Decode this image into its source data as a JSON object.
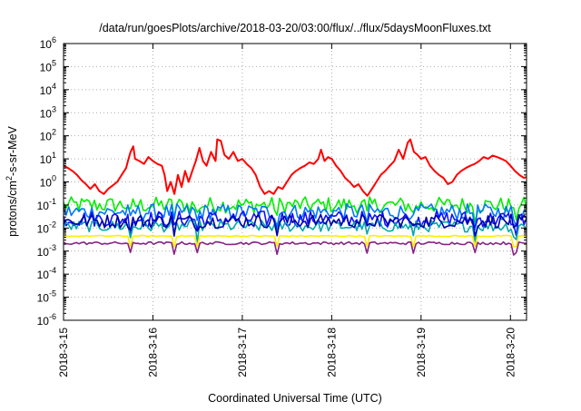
{
  "chart_data": {
    "type": "line",
    "title": "/data/run/goesPlots/archive/2018-03-20/03:00/flux/../flux/5daysMoonFluxes.txt",
    "xlabel": "Coordinated Universal Time (UTC)",
    "ylabel_prefix": "protons/cm",
    "ylabel_sup": "2",
    "ylabel_suffix": "-s-sr-MeV",
    "yscale": "log",
    "ylim": [
      1e-06,
      1000000.0
    ],
    "xlim": [
      0,
      5.18
    ],
    "y_ticks": [
      {
        "value": -6,
        "base": "10",
        "exp": "-6"
      },
      {
        "value": -5,
        "base": "10",
        "exp": "-5"
      },
      {
        "value": -4,
        "base": "10",
        "exp": "-4"
      },
      {
        "value": -3,
        "base": "10",
        "exp": "-3"
      },
      {
        "value": -2,
        "base": "10",
        "exp": "-2"
      },
      {
        "value": -1,
        "base": "10",
        "exp": "-1"
      },
      {
        "value": 0,
        "base": "10",
        "exp": "0"
      },
      {
        "value": 1,
        "base": "10",
        "exp": "1"
      },
      {
        "value": 2,
        "base": "10",
        "exp": "2"
      },
      {
        "value": 3,
        "base": "10",
        "exp": "3"
      },
      {
        "value": 4,
        "base": "10",
        "exp": "4"
      },
      {
        "value": 5,
        "base": "10",
        "exp": "5"
      },
      {
        "value": 6,
        "base": "10",
        "exp": "6"
      }
    ],
    "x_ticks": [
      {
        "value": 0,
        "label": "2018-3-15"
      },
      {
        "value": 1,
        "label": "2018-3-16"
      },
      {
        "value": 2,
        "label": "2018-3-17"
      },
      {
        "value": 3,
        "label": "2018-3-18"
      },
      {
        "value": 4,
        "label": "2018-3-19"
      },
      {
        "value": 5,
        "label": "2018-3-20"
      }
    ],
    "grid": true,
    "series": [
      {
        "color": "#ff0000",
        "values": [
          [
            0.0,
            5.0
          ],
          [
            0.05,
            4.0
          ],
          [
            0.1,
            3.0
          ],
          [
            0.15,
            2.0
          ],
          [
            0.2,
            1.2
          ],
          [
            0.25,
            0.8
          ],
          [
            0.3,
            0.5
          ],
          [
            0.35,
            0.8
          ],
          [
            0.4,
            0.4
          ],
          [
            0.45,
            0.3
          ],
          [
            0.5,
            0.5
          ],
          [
            0.55,
            0.7
          ],
          [
            0.6,
            1.0
          ],
          [
            0.65,
            2.0
          ],
          [
            0.7,
            4.0
          ],
          [
            0.72,
            8.0
          ],
          [
            0.75,
            20.0
          ],
          [
            0.78,
            35.0
          ],
          [
            0.8,
            10.0
          ],
          [
            0.85,
            8.0
          ],
          [
            0.9,
            6.0
          ],
          [
            0.95,
            12.0
          ],
          [
            1.0,
            8.0
          ],
          [
            1.05,
            6.0
          ],
          [
            1.1,
            5.0
          ],
          [
            1.13,
            2.0
          ],
          [
            1.16,
            0.4
          ],
          [
            1.2,
            1.0
          ],
          [
            1.24,
            0.3
          ],
          [
            1.28,
            2.0
          ],
          [
            1.32,
            0.6
          ],
          [
            1.36,
            3.0
          ],
          [
            1.4,
            1.0
          ],
          [
            1.44,
            3.0
          ],
          [
            1.48,
            8.0
          ],
          [
            1.52,
            30.0
          ],
          [
            1.56,
            8.0
          ],
          [
            1.6,
            5.0
          ],
          [
            1.65,
            20.0
          ],
          [
            1.7,
            8.0
          ],
          [
            1.72,
            70.0
          ],
          [
            1.76,
            60.0
          ],
          [
            1.8,
            15.0
          ],
          [
            1.85,
            10.0
          ],
          [
            1.9,
            20.0
          ],
          [
            1.95,
            8.0
          ],
          [
            2.0,
            10.0
          ],
          [
            2.05,
            6.0
          ],
          [
            2.1,
            4.0
          ],
          [
            2.15,
            2.0
          ],
          [
            2.2,
            0.6
          ],
          [
            2.25,
            0.3
          ],
          [
            2.3,
            0.4
          ],
          [
            2.35,
            0.3
          ],
          [
            2.4,
            0.6
          ],
          [
            2.45,
            0.5
          ],
          [
            2.5,
            1.0
          ],
          [
            2.55,
            2.0
          ],
          [
            2.6,
            3.0
          ],
          [
            2.65,
            4.0
          ],
          [
            2.7,
            5.0
          ],
          [
            2.75,
            7.0
          ],
          [
            2.8,
            6.0
          ],
          [
            2.85,
            10.0
          ],
          [
            2.88,
            25.0
          ],
          [
            2.92,
            8.0
          ],
          [
            2.96,
            12.0
          ],
          [
            3.0,
            10.0
          ],
          [
            3.05,
            5.0
          ],
          [
            3.1,
            3.0
          ],
          [
            3.15,
            1.5
          ],
          [
            3.2,
            1.0
          ],
          [
            3.25,
            0.6
          ],
          [
            3.3,
            0.8
          ],
          [
            3.35,
            0.4
          ],
          [
            3.4,
            0.25
          ],
          [
            3.45,
            0.5
          ],
          [
            3.5,
            1.0
          ],
          [
            3.55,
            2.0
          ],
          [
            3.6,
            3.0
          ],
          [
            3.65,
            5.0
          ],
          [
            3.7,
            8.0
          ],
          [
            3.75,
            25.0
          ],
          [
            3.8,
            10.0
          ],
          [
            3.85,
            50.0
          ],
          [
            3.88,
            70.0
          ],
          [
            3.92,
            20.0
          ],
          [
            3.96,
            15.0
          ],
          [
            4.0,
            10.0
          ],
          [
            4.05,
            12.0
          ],
          [
            4.1,
            5.0
          ],
          [
            4.15,
            3.0
          ],
          [
            4.2,
            2.0
          ],
          [
            4.25,
            1.5
          ],
          [
            4.3,
            0.8
          ],
          [
            4.35,
            1.0
          ],
          [
            4.4,
            2.0
          ],
          [
            4.45,
            3.0
          ],
          [
            4.5,
            4.0
          ],
          [
            4.55,
            5.0
          ],
          [
            4.6,
            6.0
          ],
          [
            4.65,
            8.0
          ],
          [
            4.7,
            12.0
          ],
          [
            4.75,
            10.0
          ],
          [
            4.8,
            14.0
          ],
          [
            4.85,
            12.0
          ],
          [
            4.9,
            10.0
          ],
          [
            4.95,
            8.0
          ],
          [
            5.0,
            5.0
          ],
          [
            5.05,
            3.0
          ],
          [
            5.1,
            2.0
          ],
          [
            5.15,
            1.5
          ],
          [
            5.18,
            1.6
          ]
        ]
      },
      {
        "color": "#00ee00",
        "band": {
          "center": 0.1,
          "spread": 0.35
        }
      },
      {
        "color": "#0077ff",
        "band": {
          "center": 0.05,
          "spread": 0.35
        }
      },
      {
        "color": "#1111ff",
        "band": {
          "center": 0.025,
          "spread": 0.35
        }
      },
      {
        "color": "#00aaaa",
        "band": {
          "center": 0.012,
          "spread": 0.25
        }
      },
      {
        "color": "#0000aa",
        "band": {
          "center": 0.02,
          "spread": 0.3
        }
      },
      {
        "color": "#ffee00",
        "band": {
          "center": 0.0045,
          "spread": 0.03
        }
      },
      {
        "color": "#882288",
        "band": {
          "center": 0.0022,
          "spread": 0.06
        }
      }
    ]
  }
}
